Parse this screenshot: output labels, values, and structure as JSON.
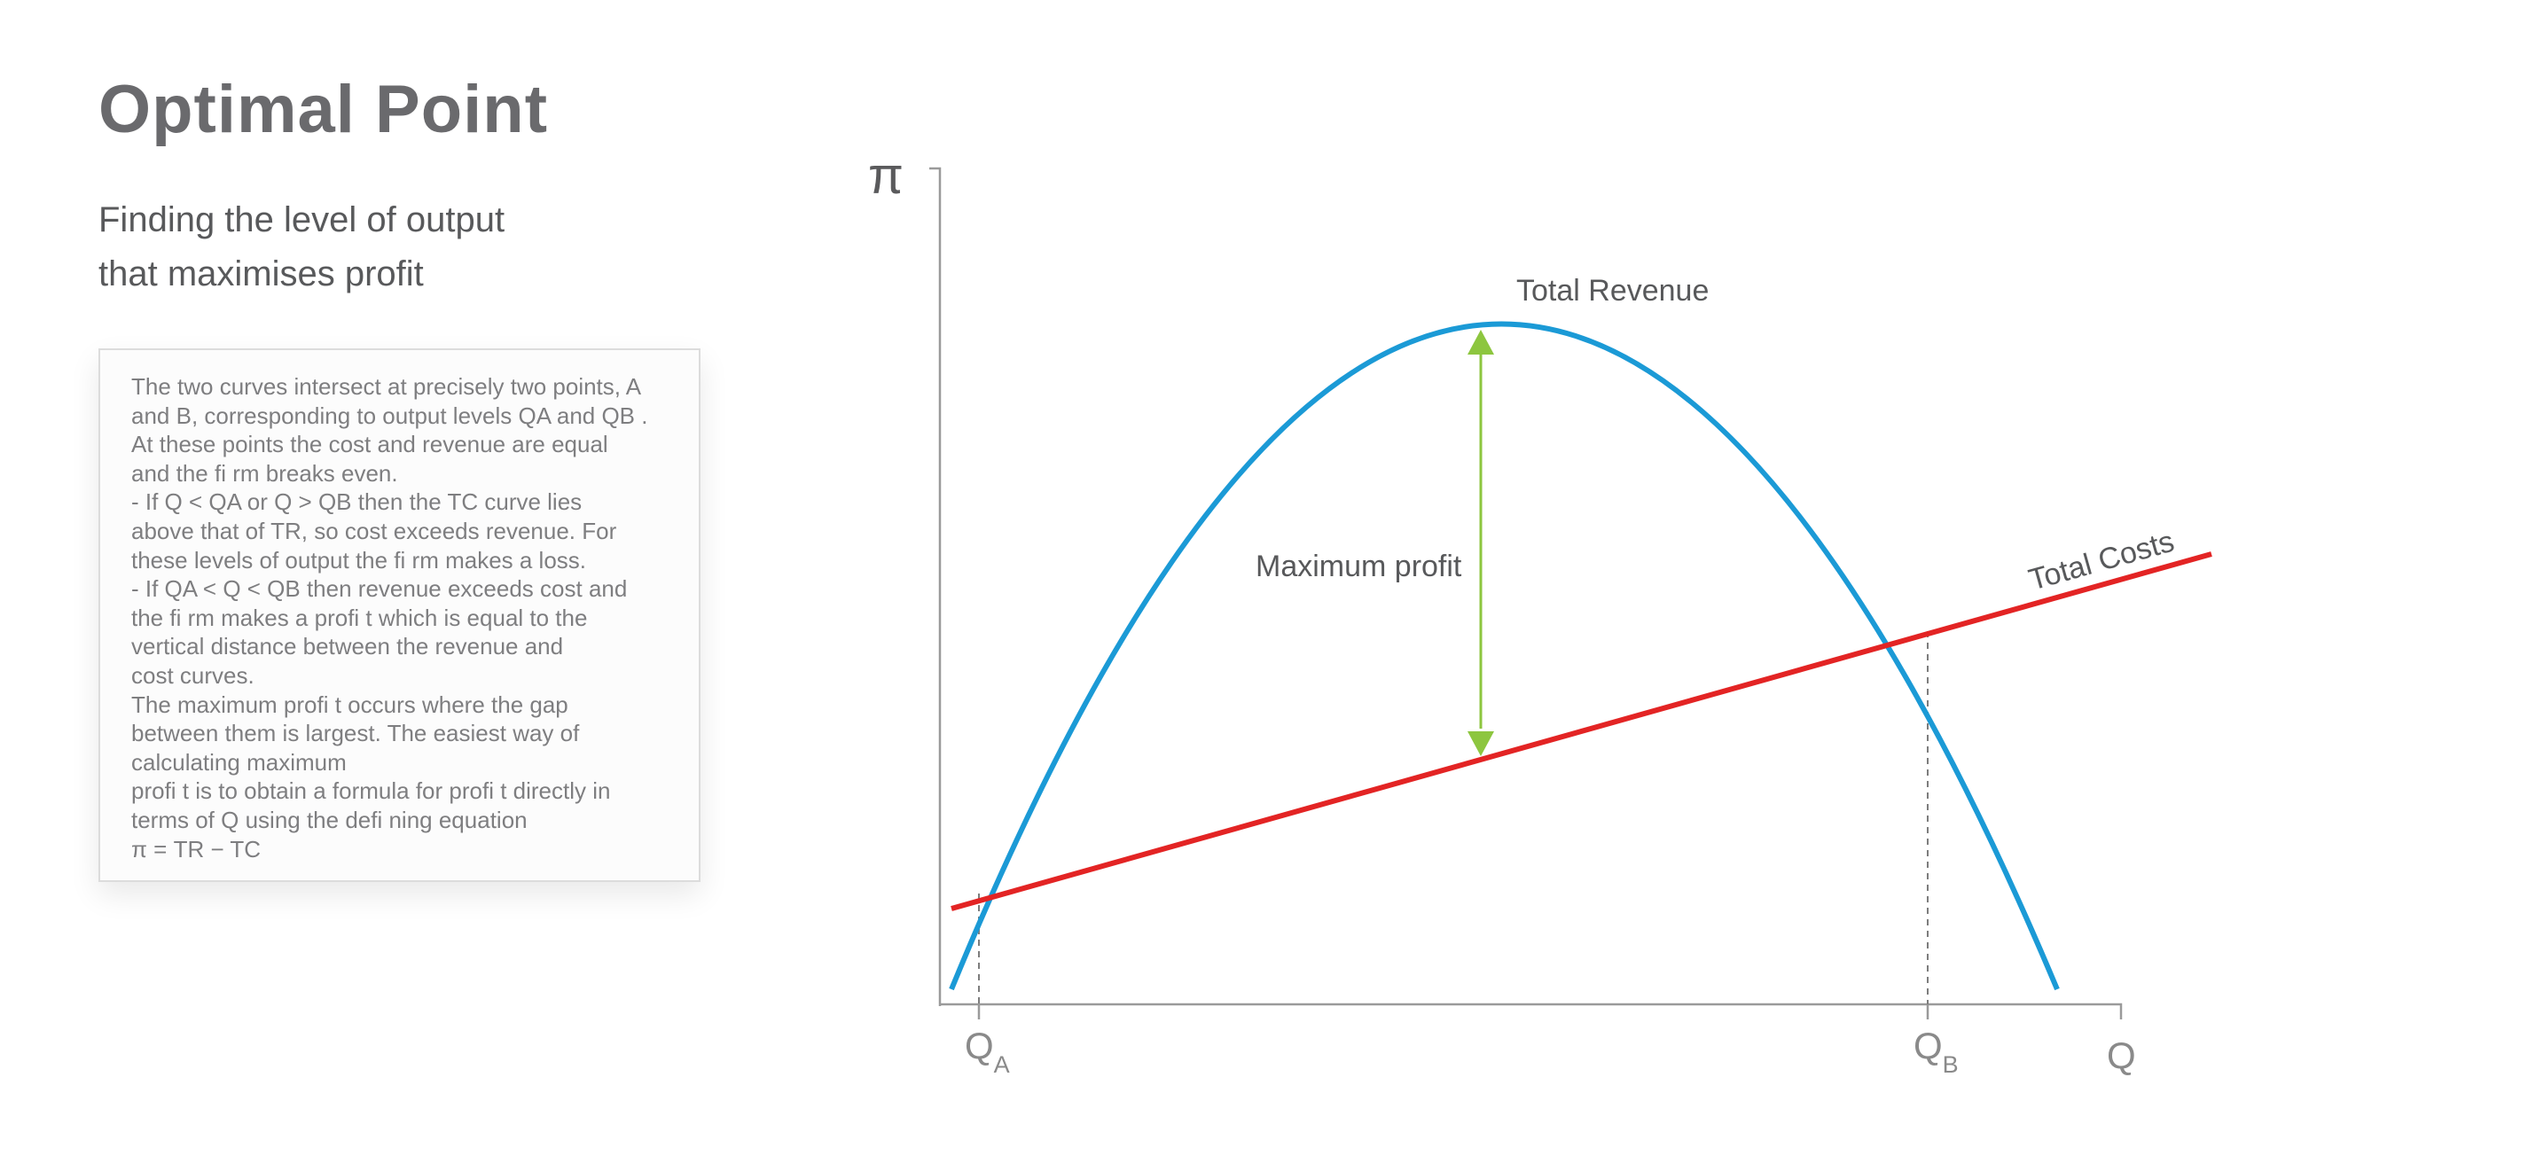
{
  "slide": {
    "title": "Optimal Point",
    "subtitle": [
      "Finding the level of output",
      "that maximises profit"
    ]
  },
  "explanation": [
    "The two curves intersect at precisely two points, A",
    "and B, corresponding to output levels QA and QB .",
    "At these points the cost and revenue are equal",
    "and the fi rm breaks even.",
    "- If Q < QA or Q > QB then the TC curve lies",
    "above that of TR, so cost exceeds revenue. For",
    "these levels of output the fi rm makes a loss.",
    "- If QA < Q < QB then revenue exceeds cost and",
    "the fi rm makes a profi t which is equal to the",
    "vertical distance between the revenue and",
    "cost curves.",
    "The maximum profi t occurs where the gap",
    "between them is largest. The easiest way of",
    "calculating maximum",
    "profi t is to obtain a formula for profi t directly in",
    "terms of Q using the defi ning equation",
    "π = TR − TC"
  ],
  "diagram": {
    "y_axis_label": "π",
    "x_axis_label": "Q",
    "qa_label": "Q",
    "qa_sub": "A",
    "qb_label": "Q",
    "qb_sub": "B",
    "revenue_label": "Total Revenue",
    "cost_label": "Total Costs",
    "profit_label": "Maximum profit",
    "colors": {
      "revenue": "#1b9ad6",
      "cost": "#e32424",
      "profit_arrow": "#8dc63f",
      "axis": "#9a9a9a",
      "label": "#58595b"
    }
  }
}
